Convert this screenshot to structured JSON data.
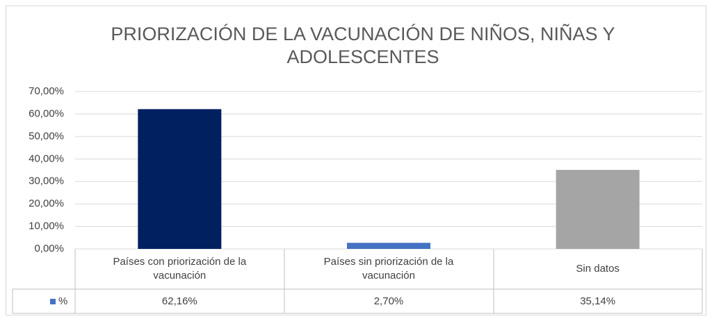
{
  "chart_data": {
    "type": "bar",
    "title": "PRIORIZACIÓN DE LA VACUNACIÓN DE NIÑOS, NIÑAS Y ADOLESCENTES",
    "categories": [
      "Países con priorización de la vacunación",
      "Países sin priorización de la vacunación",
      "Sin datos"
    ],
    "series": [
      {
        "name": "%",
        "color": "#4472c4",
        "colors": [
          "#002060",
          "#4472c4",
          "#a5a5a5"
        ],
        "values": [
          62.16,
          2.7,
          35.14
        ],
        "value_labels": [
          "62,16%",
          "2,70%",
          "35,14%"
        ]
      }
    ],
    "ylim": [
      0,
      70
    ],
    "yticks": [
      {
        "value": 0,
        "label": "0,00%"
      },
      {
        "value": 10,
        "label": "10,00%"
      },
      {
        "value": 20,
        "label": "20,00%"
      },
      {
        "value": 30,
        "label": "30,00%"
      },
      {
        "value": 40,
        "label": "40,00%"
      },
      {
        "value": 50,
        "label": "50,00%"
      },
      {
        "value": 60,
        "label": "60,00%"
      },
      {
        "value": 70,
        "label": "70,00%"
      }
    ],
    "grid": true
  }
}
